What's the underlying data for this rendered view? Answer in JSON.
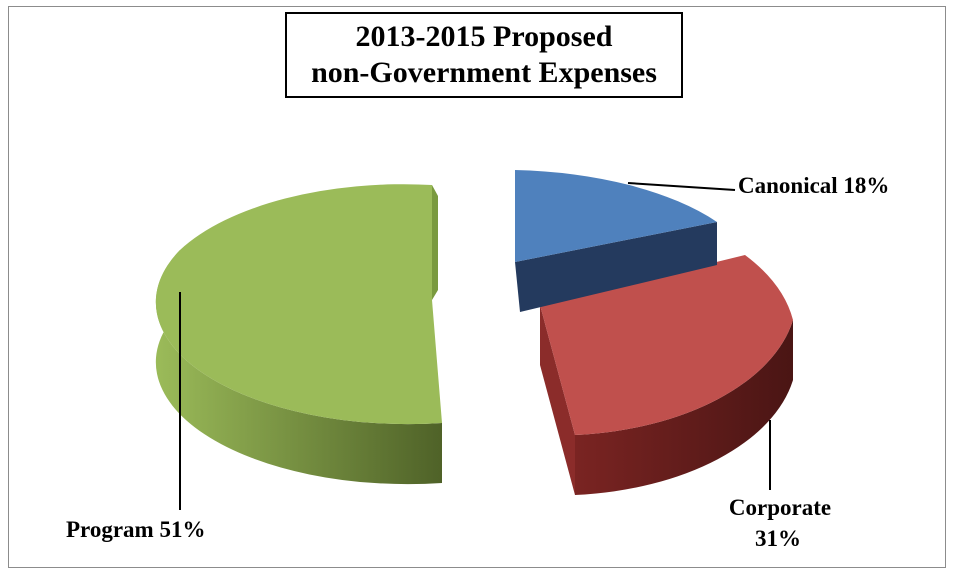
{
  "chart_data": {
    "type": "pie",
    "title_line1": "2013-2015 Proposed",
    "title_line2": "non-Government Expenses",
    "slices": [
      {
        "name": "Canonical",
        "value": 18,
        "label": "Canonical 18%",
        "color": "#4f81bd"
      },
      {
        "name": "Corporate",
        "value": 31,
        "label_line1": "Corporate",
        "label_line2": "31%",
        "color": "#c0504d"
      },
      {
        "name": "Program",
        "value": 51,
        "label": "Program 51%",
        "color": "#9bbb59"
      }
    ],
    "style": "3d-exploded",
    "legend": "none"
  }
}
